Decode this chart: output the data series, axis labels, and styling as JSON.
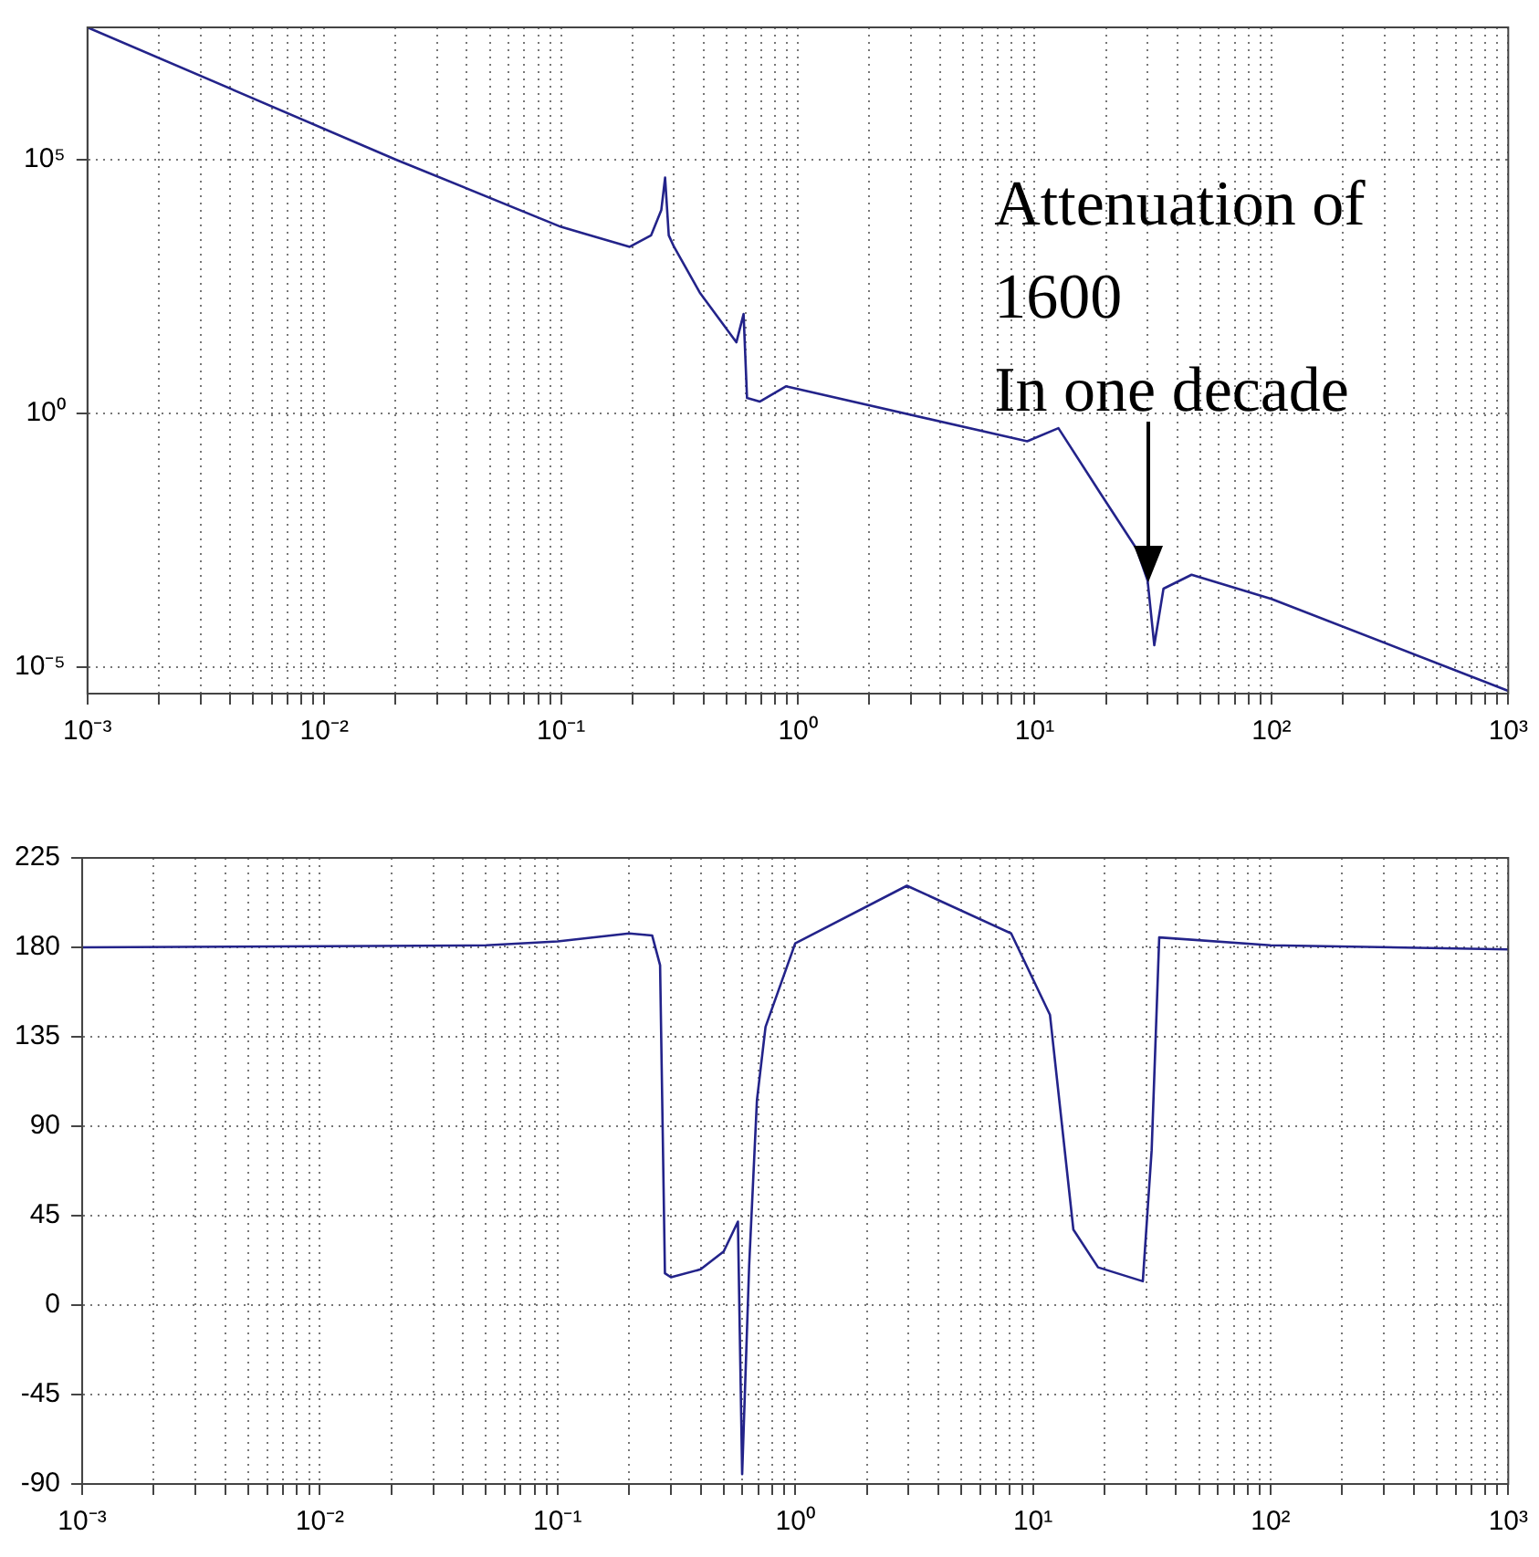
{
  "chart_data": [
    {
      "type": "line",
      "log": "xy",
      "grid": true,
      "marker": "none",
      "line_style": "solid",
      "x": [
        0.001,
        0.02,
        0.1,
        0.195,
        0.24,
        0.265,
        0.275,
        0.285,
        0.3,
        0.385,
        0.55,
        0.59,
        0.61,
        0.69,
        0.89,
        9.3,
        12.6,
        19,
        27,
        30,
        32,
        35,
        46,
        100,
        1000
      ],
      "series": [
        {
          "color": "#23238a",
          "values": [
            40000000.0,
            100000.0,
            4700,
            1900,
            3200,
            10000.0,
            44000,
            3200,
            1900,
            240,
            25,
            90,
            2,
            1.7,
            3.4,
            0.28,
            0.51,
            0.026,
            0.0021,
            0.0005,
            2.7e-05,
            0.00035,
            0.00066,
            0.00022,
            3.4e-06
          ]
        }
      ],
      "xlim": [
        0.001,
        1000
      ],
      "ylim": [
        3e-06,
        40000000.0
      ],
      "xticks": [
        {
          "value": 0.001,
          "label": "10⁻³"
        },
        {
          "value": 0.002,
          "label": null
        },
        {
          "value": 0.003,
          "label": null
        },
        {
          "value": 0.004,
          "label": null
        },
        {
          "value": 0.005,
          "label": null
        },
        {
          "value": 0.006,
          "label": null
        },
        {
          "value": 0.007,
          "label": null
        },
        {
          "value": 0.008,
          "label": null
        },
        {
          "value": 0.009,
          "label": null
        },
        {
          "value": 0.01,
          "label": "10⁻²"
        },
        {
          "value": 0.02,
          "label": null
        },
        {
          "value": 0.03,
          "label": null
        },
        {
          "value": 0.04,
          "label": null
        },
        {
          "value": 0.05,
          "label": null
        },
        {
          "value": 0.06,
          "label": null
        },
        {
          "value": 0.07,
          "label": null
        },
        {
          "value": 0.08,
          "label": null
        },
        {
          "value": 0.09,
          "label": null
        },
        {
          "value": 0.1,
          "label": "10⁻¹"
        },
        {
          "value": 0.2,
          "label": null
        },
        {
          "value": 0.3,
          "label": null
        },
        {
          "value": 0.4,
          "label": null
        },
        {
          "value": 0.5,
          "label": null
        },
        {
          "value": 0.6,
          "label": null
        },
        {
          "value": 0.7,
          "label": null
        },
        {
          "value": 0.8,
          "label": null
        },
        {
          "value": 0.9,
          "label": null
        },
        {
          "value": 1,
          "label": "10⁰"
        },
        {
          "value": 2,
          "label": null
        },
        {
          "value": 3,
          "label": null
        },
        {
          "value": 4,
          "label": null
        },
        {
          "value": 5,
          "label": null
        },
        {
          "value": 6,
          "label": null
        },
        {
          "value": 7,
          "label": null
        },
        {
          "value": 8,
          "label": null
        },
        {
          "value": 9,
          "label": null
        },
        {
          "value": 10,
          "label": "10¹"
        },
        {
          "value": 20,
          "label": null
        },
        {
          "value": 30,
          "label": null
        },
        {
          "value": 40,
          "label": null
        },
        {
          "value": 50,
          "label": null
        },
        {
          "value": 60,
          "label": null
        },
        {
          "value": 70,
          "label": null
        },
        {
          "value": 80,
          "label": null
        },
        {
          "value": 90,
          "label": null
        },
        {
          "value": 100,
          "label": "10²"
        },
        {
          "value": 200,
          "label": null
        },
        {
          "value": 300,
          "label": null
        },
        {
          "value": 400,
          "label": null
        },
        {
          "value": 500,
          "label": null
        },
        {
          "value": 600,
          "label": null
        },
        {
          "value": 700,
          "label": null
        },
        {
          "value": 800,
          "label": null
        },
        {
          "value": 900,
          "label": null
        },
        {
          "value": 1000,
          "label": "10³"
        }
      ],
      "yticks": [
        {
          "value": 1e-05,
          "label": "10⁻⁵"
        },
        {
          "value": 1,
          "label": "10⁰"
        },
        {
          "value": 100000.0,
          "label": "10⁵"
        }
      ],
      "annotations": [
        {
          "text": "Attenuation of\n1600\nIn one decade",
          "x": 30,
          "y": 0.00046
        }
      ]
    },
    {
      "type": "line",
      "log": "x",
      "grid": true,
      "marker": "none",
      "line_style": "solid",
      "x": [
        0.001,
        0.05,
        0.1,
        0.2,
        0.25,
        0.27,
        0.283,
        0.3,
        0.4,
        0.5,
        0.574,
        0.598,
        0.64,
        0.69,
        0.75,
        1,
        2.95,
        8.1,
        11.8,
        14.8,
        18.8,
        29,
        31.6,
        34,
        100,
        1000
      ],
      "series": [
        {
          "color": "#23238a",
          "values": [
            180,
            181,
            183,
            187,
            186,
            171,
            16,
            14,
            18,
            27,
            42,
            -85,
            20,
            103,
            140,
            182,
            211,
            187,
            146,
            38,
            19,
            12,
            78,
            185,
            181,
            179
          ]
        }
      ],
      "xlim": [
        0.001,
        1000
      ],
      "ylim": [
        -90,
        225
      ],
      "xticks": [
        {
          "value": 0.001,
          "label": "10⁻³"
        },
        {
          "value": 0.002,
          "label": null
        },
        {
          "value": 0.003,
          "label": null
        },
        {
          "value": 0.004,
          "label": null
        },
        {
          "value": 0.005,
          "label": null
        },
        {
          "value": 0.006,
          "label": null
        },
        {
          "value": 0.007,
          "label": null
        },
        {
          "value": 0.008,
          "label": null
        },
        {
          "value": 0.009,
          "label": null
        },
        {
          "value": 0.01,
          "label": "10⁻²"
        },
        {
          "value": 0.02,
          "label": null
        },
        {
          "value": 0.03,
          "label": null
        },
        {
          "value": 0.04,
          "label": null
        },
        {
          "value": 0.05,
          "label": null
        },
        {
          "value": 0.06,
          "label": null
        },
        {
          "value": 0.07,
          "label": null
        },
        {
          "value": 0.08,
          "label": null
        },
        {
          "value": 0.09,
          "label": null
        },
        {
          "value": 0.1,
          "label": "10⁻¹"
        },
        {
          "value": 0.2,
          "label": null
        },
        {
          "value": 0.3,
          "label": null
        },
        {
          "value": 0.4,
          "label": null
        },
        {
          "value": 0.5,
          "label": null
        },
        {
          "value": 0.6,
          "label": null
        },
        {
          "value": 0.7,
          "label": null
        },
        {
          "value": 0.8,
          "label": null
        },
        {
          "value": 0.9,
          "label": null
        },
        {
          "value": 1,
          "label": "10⁰"
        },
        {
          "value": 2,
          "label": null
        },
        {
          "value": 3,
          "label": null
        },
        {
          "value": 4,
          "label": null
        },
        {
          "value": 5,
          "label": null
        },
        {
          "value": 6,
          "label": null
        },
        {
          "value": 7,
          "label": null
        },
        {
          "value": 8,
          "label": null
        },
        {
          "value": 9,
          "label": null
        },
        {
          "value": 10,
          "label": "10¹"
        },
        {
          "value": 20,
          "label": null
        },
        {
          "value": 30,
          "label": null
        },
        {
          "value": 40,
          "label": null
        },
        {
          "value": 50,
          "label": null
        },
        {
          "value": 60,
          "label": null
        },
        {
          "value": 70,
          "label": null
        },
        {
          "value": 80,
          "label": null
        },
        {
          "value": 90,
          "label": null
        },
        {
          "value": 100,
          "label": "10²"
        },
        {
          "value": 200,
          "label": null
        },
        {
          "value": 300,
          "label": null
        },
        {
          "value": 400,
          "label": null
        },
        {
          "value": 500,
          "label": null
        },
        {
          "value": 600,
          "label": null
        },
        {
          "value": 700,
          "label": null
        },
        {
          "value": 800,
          "label": null
        },
        {
          "value": 900,
          "label": null
        },
        {
          "value": 1000,
          "label": "10³"
        }
      ],
      "yticks": [
        -90,
        -45,
        0,
        45,
        90,
        135,
        180,
        225
      ]
    }
  ]
}
